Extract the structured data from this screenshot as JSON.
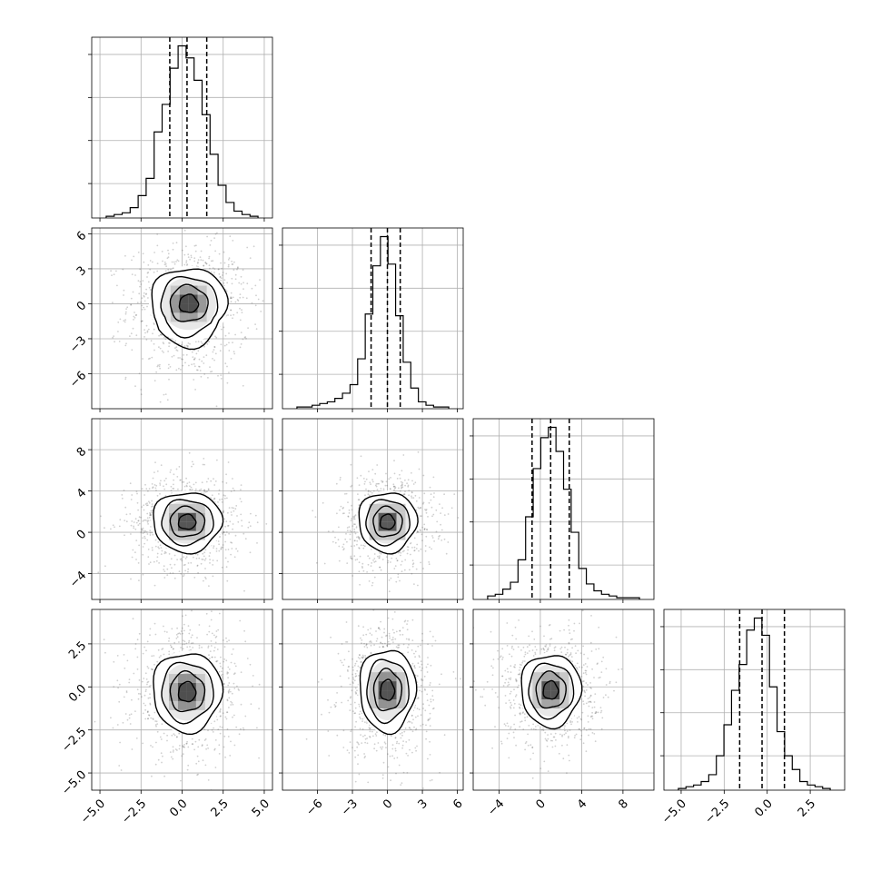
{
  "chart_data": {
    "type": "corner",
    "grid": true,
    "variables": [
      {
        "id": "p0",
        "range": [
          -5.5,
          5.5
        ],
        "ticks": [
          -5.0,
          -2.5,
          0.0,
          2.5,
          5.0
        ],
        "tick_labels": [
          "−5.0",
          "−2.5",
          "0.0",
          "2.5",
          "5.0"
        ],
        "center": 0.3,
        "quantiles": [
          -0.75,
          0.3,
          1.5
        ],
        "hist_counts": [
          1,
          2,
          3,
          6,
          13,
          23,
          50,
          66,
          87,
          100,
          93,
          80,
          60,
          37,
          19,
          9,
          4,
          2,
          1
        ]
      },
      {
        "id": "p1",
        "range": [
          -9,
          6.5
        ],
        "ticks": [
          -6,
          -3,
          0,
          3,
          6
        ],
        "tick_labels": [
          "−6",
          "−3",
          "0",
          "3",
          "6"
        ],
        "center": 0.0,
        "quantiles": [
          -1.4,
          0.0,
          1.1
        ],
        "hist_counts": [
          1,
          1,
          2,
          3,
          4,
          6,
          9,
          14,
          29,
          55,
          83,
          100,
          84,
          54,
          27,
          12,
          4,
          2,
          1,
          1
        ]
      },
      {
        "id": "p2",
        "range": [
          -6.5,
          11
        ],
        "ticks": [
          -4,
          0,
          4,
          8
        ],
        "tick_labels": [
          "−4",
          "0",
          "4",
          "8"
        ],
        "center": 1.0,
        "quantiles": [
          -0.8,
          1.0,
          2.8
        ],
        "hist_counts": [
          2,
          3,
          6,
          10,
          23,
          48,
          76,
          94,
          100,
          86,
          64,
          39,
          18,
          9,
          5,
          3,
          2,
          1,
          1,
          1
        ]
      },
      {
        "id": "p3",
        "range": [
          -6,
          4.5
        ],
        "ticks": [
          -5.0,
          -2.5,
          0.0,
          2.5
        ],
        "tick_labels": [
          "−5.0",
          "−2.5",
          "0.0",
          "2.5"
        ],
        "center": -0.3,
        "quantiles": [
          -1.6,
          -0.3,
          1.0
        ],
        "hist_counts": [
          1,
          2,
          3,
          5,
          9,
          20,
          38,
          58,
          73,
          93,
          100,
          90,
          60,
          34,
          20,
          12,
          5,
          3,
          2,
          1
        ]
      }
    ],
    "pairs": [
      {
        "x": "p0",
        "y": "p1",
        "spread": [
          1.15,
          1.55
        ],
        "center": [
          0.4,
          0.0
        ],
        "tail": [
          0.0,
          -3.5
        ]
      },
      {
        "x": "p0",
        "y": "p2",
        "spread": [
          1.05,
          1.45
        ],
        "center": [
          0.3,
          1.0
        ],
        "tail": [
          0.0,
          0.0
        ]
      },
      {
        "x": "p1",
        "y": "p2",
        "spread": [
          1.25,
          1.45
        ],
        "center": [
          0.0,
          1.0
        ],
        "tail": [
          0.0,
          0.0
        ]
      },
      {
        "x": "p0",
        "y": "p3",
        "spread": [
          1.05,
          1.15
        ],
        "center": [
          0.3,
          -0.3
        ],
        "tail": [
          0.0,
          0.0
        ]
      },
      {
        "x": "p1",
        "y": "p3",
        "spread": [
          1.2,
          1.2
        ],
        "center": [
          0.0,
          -0.2
        ],
        "tail": [
          0.0,
          0.0
        ]
      },
      {
        "x": "p2",
        "y": "p3",
        "spread": [
          1.45,
          1.05
        ],
        "center": [
          1.0,
          -0.2
        ],
        "tail": [
          0.0,
          0.0
        ]
      }
    ]
  }
}
